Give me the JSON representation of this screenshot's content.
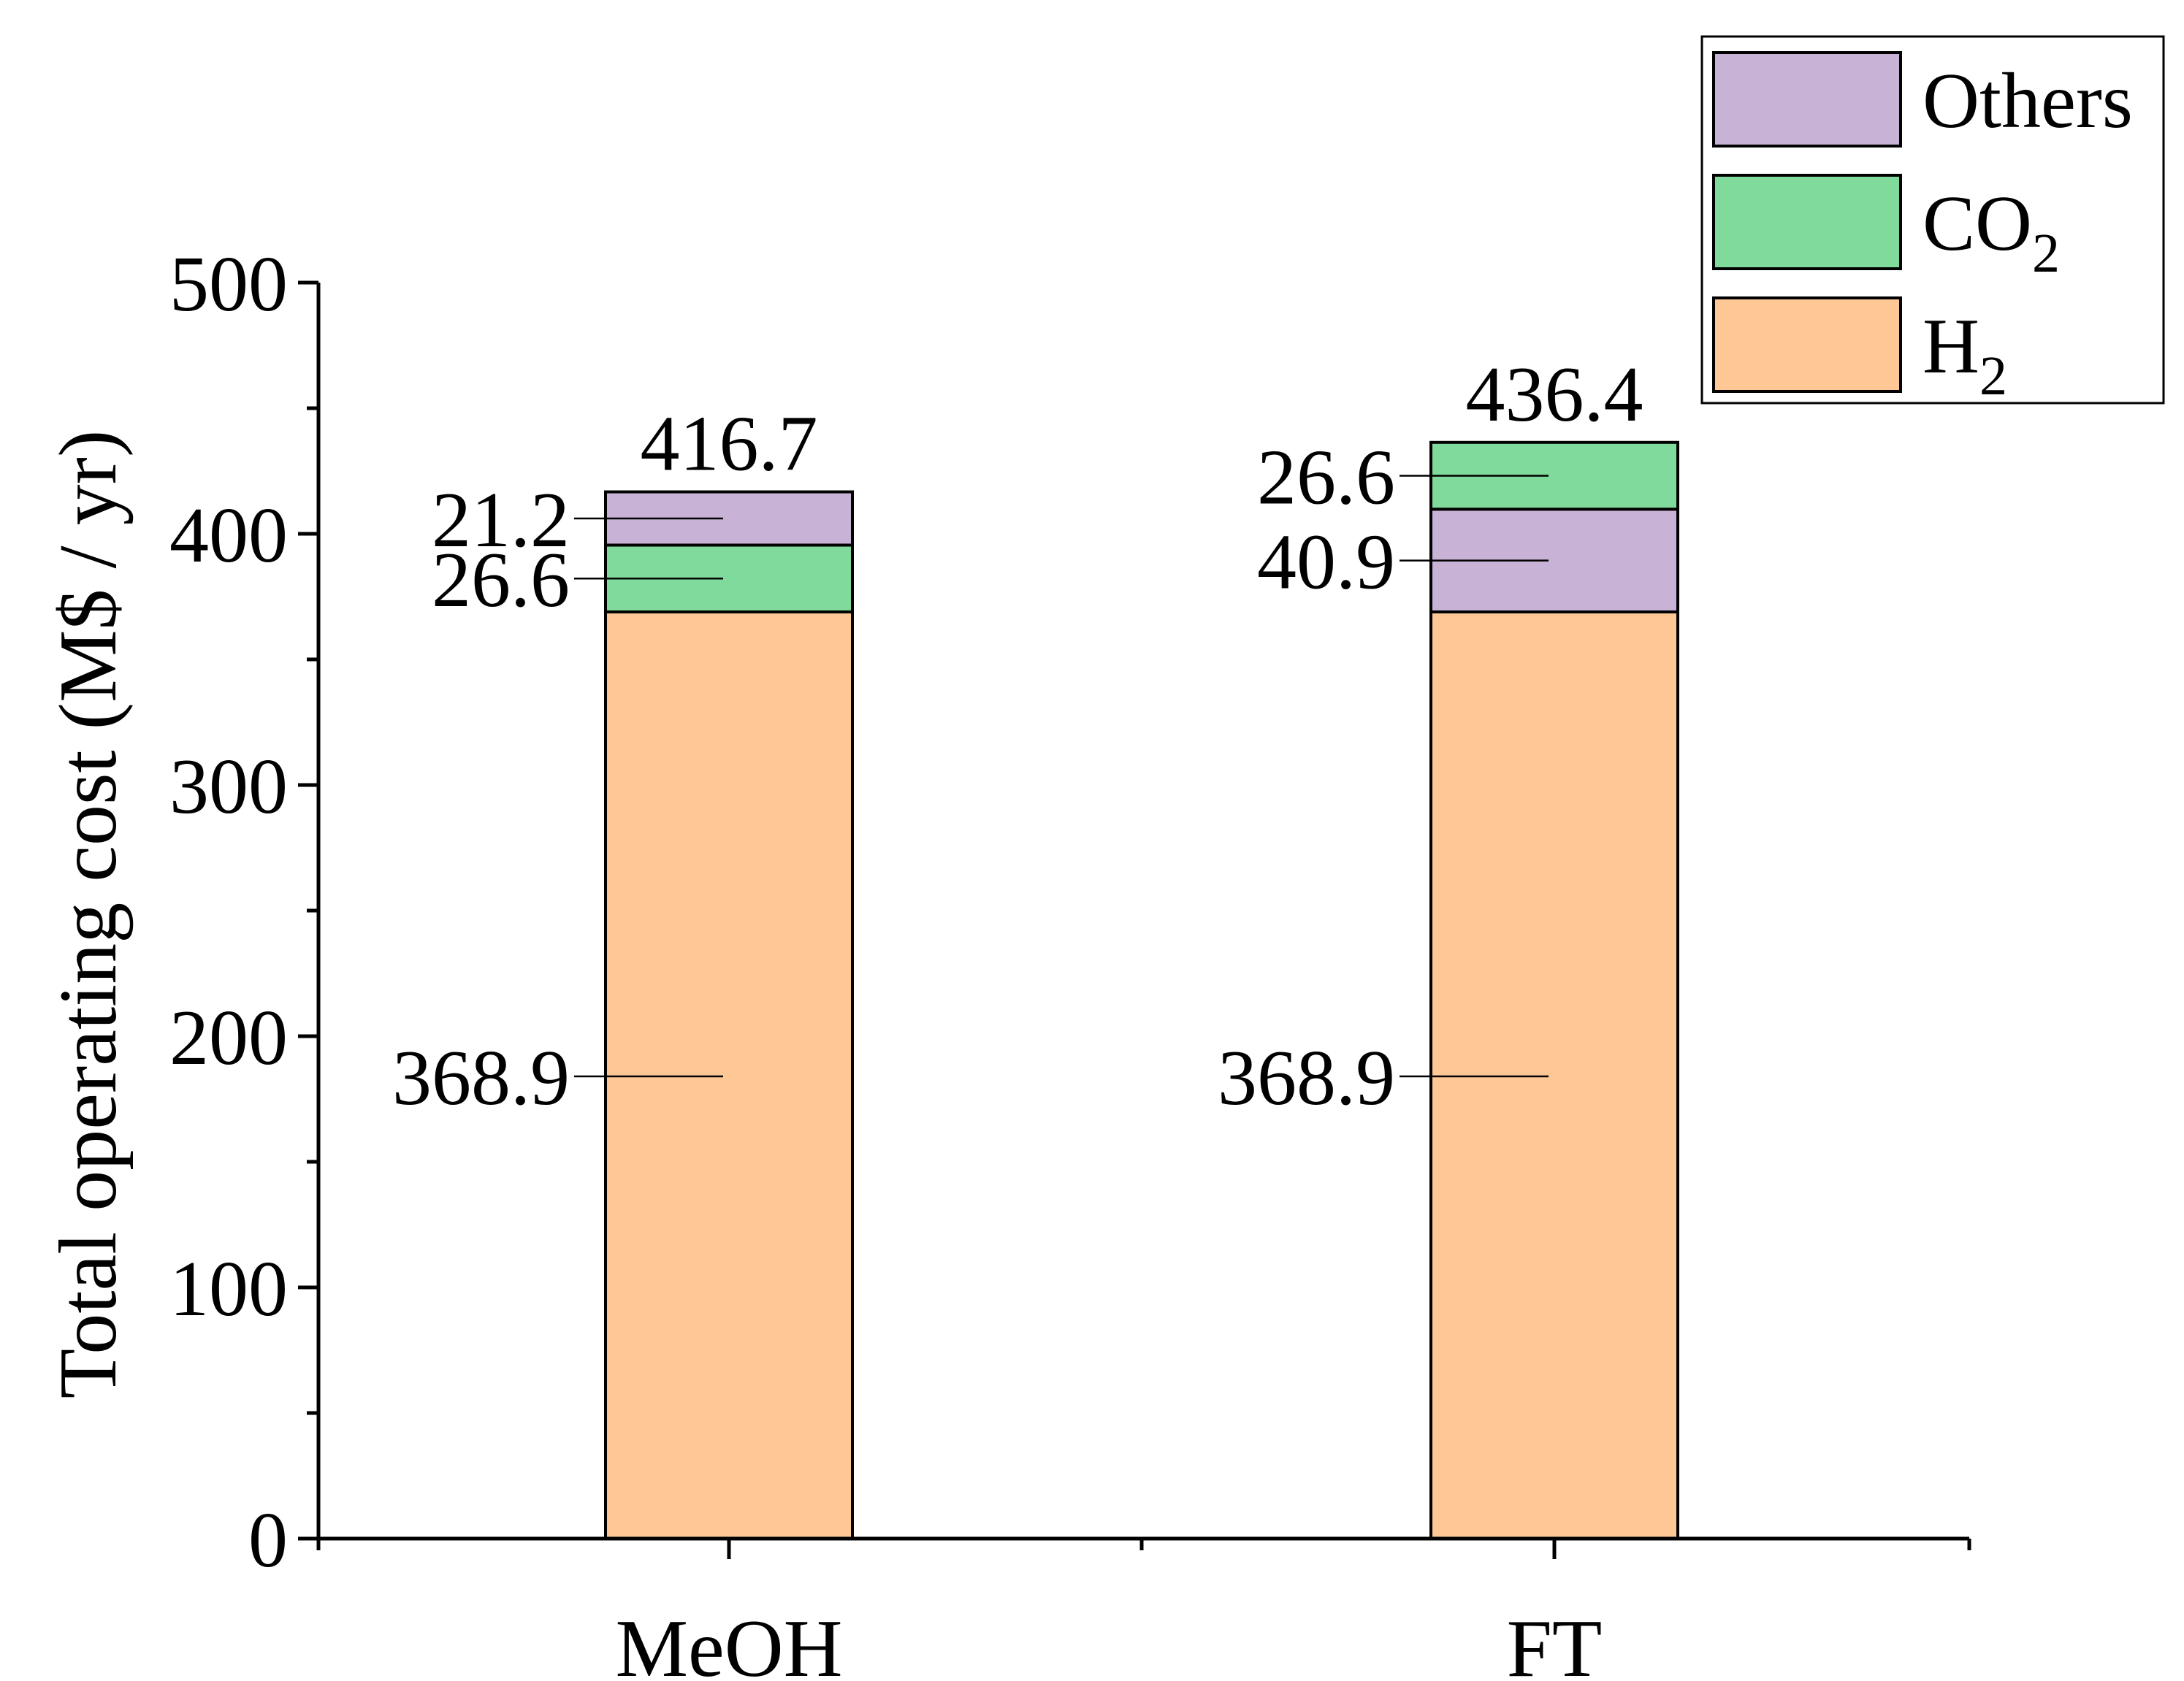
{
  "chart_data": {
    "type": "bar",
    "stacked": true,
    "categories": [
      "MeOH",
      "FT"
    ],
    "ylabel": "Total operating cost (M$ / yr)",
    "xlabel": "",
    "ylim": [
      0,
      500
    ],
    "yticks": [
      0,
      100,
      200,
      300,
      400,
      500
    ],
    "ytick_labels": [
      "0",
      "100",
      "200",
      "300",
      "400",
      "500"
    ],
    "grid": false,
    "legend_position": "top-right",
    "series": [
      {
        "name": "H2",
        "label_main": "H",
        "label_sub": "2",
        "color": "#FDC896",
        "values": [
          368.9,
          368.9
        ]
      },
      {
        "name": "CO2",
        "label_main": "CO",
        "label_sub": "2",
        "color": "#80DA9B",
        "values": [
          26.6,
          26.6
        ]
      },
      {
        "name": "Others",
        "label_main": "Others",
        "label_sub": "",
        "color": "#C8B3D7",
        "values": [
          21.2,
          40.9
        ]
      }
    ],
    "stack_order": [
      [
        "H2",
        "CO2",
        "Others"
      ],
      [
        "H2",
        "Others",
        "CO2"
      ]
    ],
    "data_labels": [
      [
        "368.9",
        "26.6",
        "21.2"
      ],
      [
        "368.9",
        "40.9",
        "26.6"
      ]
    ],
    "totals": [
      "416.7",
      "436.4"
    ],
    "legend_order": [
      "Others",
      "CO2",
      "H2"
    ]
  }
}
